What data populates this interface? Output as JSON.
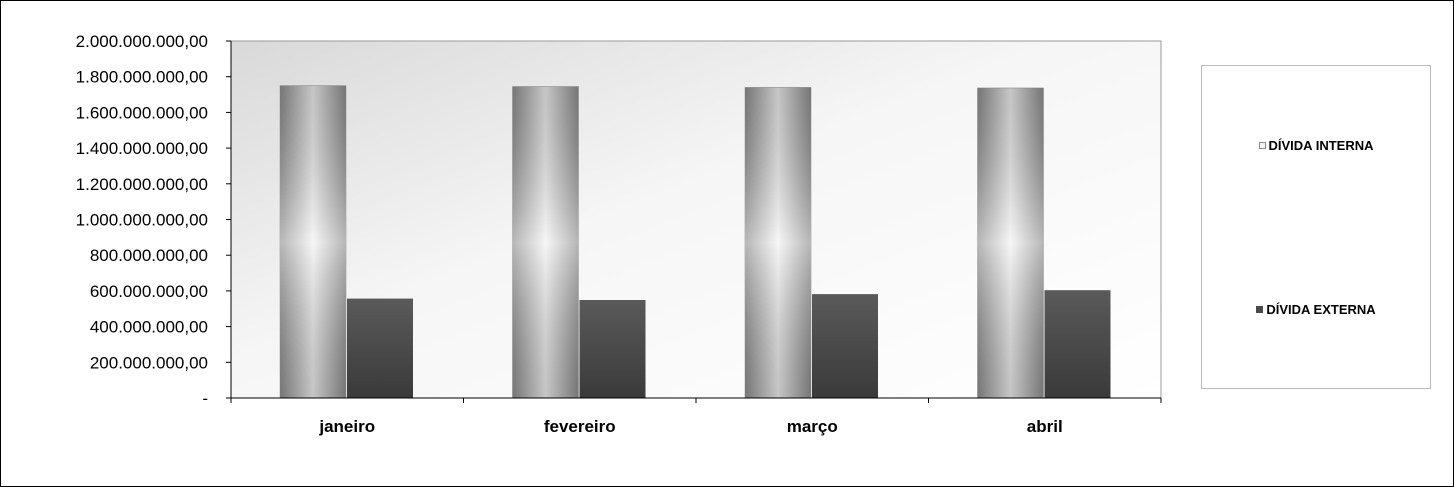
{
  "chart_data": {
    "type": "bar",
    "title": "",
    "xlabel": "",
    "ylabel": "",
    "categories": [
      "janeiro",
      "fevereiro",
      "março",
      "abril"
    ],
    "series": [
      {
        "name": "DÍVIDA INTERNA",
        "values": [
          1750000000,
          1745000000,
          1740000000,
          1737000000
        ],
        "color": "#d8d8d8"
      },
      {
        "name": "DÍVIDA EXTERNA",
        "values": [
          557000000,
          549000000,
          582000000,
          604000000
        ],
        "color": "#4a4a4a"
      }
    ],
    "ylim": [
      0,
      2000000000
    ],
    "yticks": [
      0,
      200000000,
      400000000,
      600000000,
      800000000,
      1000000000,
      1200000000,
      1400000000,
      1600000000,
      1800000000,
      2000000000
    ],
    "ytick_labels": [
      "-",
      "200.000.000,00",
      "400.000.000,00",
      "600.000.000,00",
      "800.000.000,00",
      "1.000.000.000,00",
      "1.200.000.000,00",
      "1.400.000.000,00",
      "1.600.000.000,00",
      "1.800.000.000,00",
      "2.000.000.000,00"
    ],
    "grid": false,
    "legend_position": "right"
  },
  "legend": {
    "interna": "DÍVIDA INTERNA",
    "externa": "DÍVIDA EXTERNA"
  }
}
